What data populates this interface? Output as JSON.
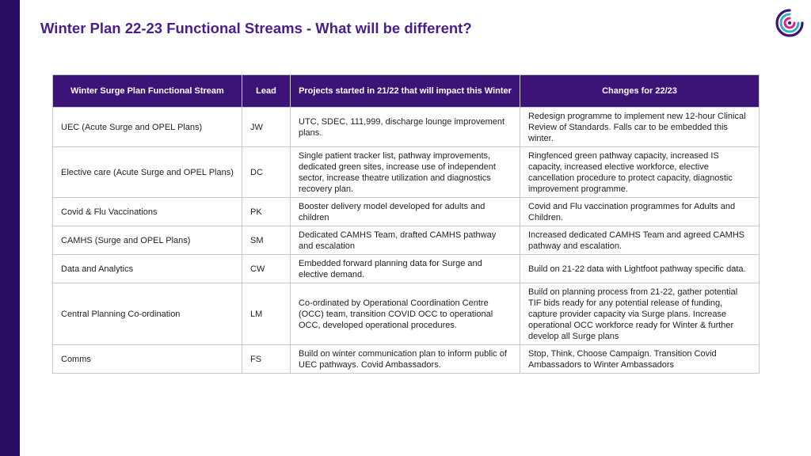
{
  "title": "Winter Plan 22-23 Functional Streams - What will be different?",
  "colors": {
    "sidebar": "#2a0e63",
    "title": "#4a1d8c",
    "header_bg": "#3c1478",
    "border": "#c8c8c8"
  },
  "logo_icon": "swirl-logo-icon",
  "table": {
    "headers": [
      "Winter Surge Plan Functional Stream",
      "Lead",
      "Projects started in 21/22 that will impact this Winter",
      "Changes for 22/23"
    ],
    "rows": [
      {
        "stream": "UEC (Acute Surge and OPEL Plans)",
        "lead": "JW",
        "projects": "UTC, SDEC, 111,999, discharge lounge improvement plans.",
        "changes": "Redesign programme to implement new 12-hour Clinical Review of Standards. Falls car to be embedded this winter."
      },
      {
        "stream": "Elective care (Acute Surge and OPEL Plans)",
        "lead": "DC",
        "projects": "Single patient tracker list, pathway improvements, dedicated green sites, increase use of independent sector, increase theatre utilization and diagnostics recovery plan.",
        "changes": "Ringfenced green pathway capacity, increased IS capacity, increased elective workforce, elective cancellation procedure to protect capacity, diagnostic improvement programme."
      },
      {
        "stream": "Covid & Flu Vaccinations",
        "lead": "PK",
        "projects": "Booster delivery model developed for adults and children",
        "changes": "Covid and Flu vaccination programmes for Adults and Children."
      },
      {
        "stream": "CAMHS (Surge and OPEL Plans)",
        "lead": "SM",
        "projects": "Dedicated CAMHS Team, drafted CAMHS pathway and escalation",
        "changes": "Increased dedicated CAMHS Team and agreed CAMHS pathway and escalation."
      },
      {
        "stream": "Data and Analytics",
        "lead": "CW",
        "projects": "Embedded forward planning data for Surge and elective demand.",
        "changes": "Build on 21-22 data with Lightfoot pathway specific data."
      },
      {
        "stream": "Central Planning Co-ordination",
        "lead": "LM",
        "projects": "Co-ordinated by Operational Coordination Centre (OCC) team, transition COVID OCC to operational OCC, developed operational procedures.",
        "changes": "Build on planning process from 21-22, gather potential TIF bids ready for any potential release of funding, capture provider capacity via Surge plans. Increase operational OCC workforce ready for Winter & further develop all Surge plans"
      },
      {
        "stream": "Comms",
        "lead": "FS",
        "projects": "Build on winter communication plan to inform public of UEC pathways. Covid Ambassadors.",
        "changes": "Stop, Think, Choose Campaign. Transition Covid Ambassadors to Winter Ambassadors"
      }
    ]
  }
}
